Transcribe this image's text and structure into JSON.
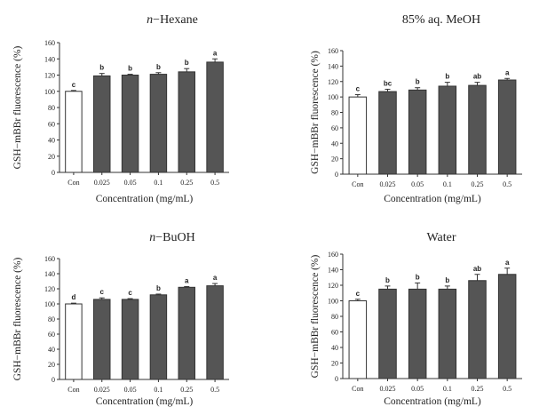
{
  "chart_data": [
    {
      "type": "bar",
      "title": "n-Hexane",
      "title_prefix": "n",
      "title_suffix": "−Hexane",
      "xlabel": "Concentration (mg/mL)",
      "ylabel": "GSH−mBBr fluorescence (%)",
      "categories": [
        "Con",
        "0.025",
        "0.05",
        "0.1",
        "0.25",
        "0.5"
      ],
      "values": [
        100,
        119,
        120,
        121,
        124,
        136
      ],
      "errors": [
        1,
        3,
        1,
        2,
        4,
        4
      ],
      "letters": [
        "c",
        "b",
        "b",
        "b",
        "b",
        "a"
      ],
      "ylim": [
        0,
        160
      ],
      "yticks": [
        0,
        20,
        40,
        60,
        80,
        100,
        120,
        140,
        160
      ],
      "colors": [
        "#ffffff",
        "#555555",
        "#555555",
        "#555555",
        "#555555",
        "#555555"
      ]
    },
    {
      "type": "bar",
      "title": "85% aq. MeOH",
      "title_prefix": "",
      "title_suffix": "85% aq. MeOH",
      "xlabel": "Concentration (mg/mL)",
      "ylabel": "GSH−mBBr fluorescence (%)",
      "categories": [
        "Con",
        "0.025",
        "0.05",
        "0.1",
        "0.25",
        "0.5"
      ],
      "values": [
        100,
        107,
        109,
        114,
        115,
        122
      ],
      "errors": [
        3,
        3,
        3,
        5,
        4,
        2
      ],
      "letters": [
        "c",
        "bc",
        "b",
        "b",
        "ab",
        "a"
      ],
      "ylim": [
        0,
        160
      ],
      "yticks": [
        0,
        20,
        40,
        60,
        80,
        100,
        120,
        140,
        160
      ],
      "colors": [
        "#ffffff",
        "#555555",
        "#555555",
        "#555555",
        "#555555",
        "#555555"
      ]
    },
    {
      "type": "bar",
      "title": "n-BuOH",
      "title_prefix": "n",
      "title_suffix": "−BuOH",
      "xlabel": "Concentration (mg/mL)",
      "ylabel": "GSH−mBBr fluorescence (%)",
      "categories": [
        "Con",
        "0.025",
        "0.05",
        "0.1",
        "0.25",
        "0.5"
      ],
      "values": [
        100,
        106,
        106,
        112,
        122,
        124
      ],
      "errors": [
        1,
        2,
        1,
        1,
        1,
        3
      ],
      "letters": [
        "d",
        "c",
        "c",
        "b",
        "a",
        "a"
      ],
      "ylim": [
        0,
        160
      ],
      "yticks": [
        0,
        20,
        40,
        60,
        80,
        100,
        120,
        140,
        160
      ],
      "colors": [
        "#ffffff",
        "#555555",
        "#555555",
        "#555555",
        "#555555",
        "#555555"
      ]
    },
    {
      "type": "bar",
      "title": "Water",
      "title_prefix": "",
      "title_suffix": "Water",
      "xlabel": "Concentration (mg/mL)",
      "ylabel": "GSH−mBBr fluorescence (%)",
      "categories": [
        "Con",
        "0.025",
        "0.05",
        "0.1",
        "0.25",
        "0.5"
      ],
      "values": [
        100,
        115,
        115,
        115,
        126,
        134
      ],
      "errors": [
        2,
        4,
        8,
        4,
        8,
        8
      ],
      "letters": [
        "c",
        "b",
        "b",
        "b",
        "ab",
        "a"
      ],
      "ylim": [
        0,
        160
      ],
      "yticks": [
        0,
        20,
        40,
        60,
        80,
        100,
        120,
        140,
        160
      ],
      "colors": [
        "#ffffff",
        "#555555",
        "#555555",
        "#555555",
        "#555555",
        "#555555"
      ]
    }
  ]
}
